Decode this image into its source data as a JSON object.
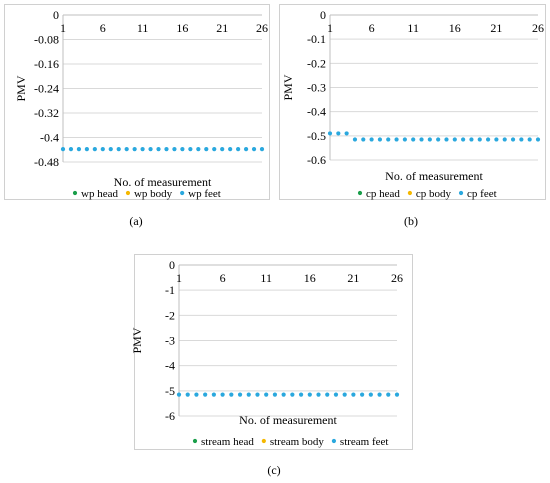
{
  "chart_data": [
    {
      "type": "scatter",
      "caption": "(a)",
      "xlabel": "No. of measurement",
      "ylabel": "PMV",
      "xticks": [
        "1",
        "6",
        "11",
        "16",
        "21",
        "26"
      ],
      "yticks": [
        "0",
        "-0.08",
        "-0.16",
        "-0.24",
        "-0.32",
        "-0.4",
        "-0.48"
      ],
      "ylim": [
        -0.48,
        0
      ],
      "xlim": [
        1,
        26
      ],
      "series": [
        {
          "name": "wp head",
          "color": "#1a9e4a",
          "values": []
        },
        {
          "name": "wp body",
          "color": "#f5b800",
          "values": []
        },
        {
          "name": "wp feet",
          "color": "#2aa8de",
          "values": [
            -0.438,
            -0.438,
            -0.438,
            -0.438,
            -0.438,
            -0.438,
            -0.438,
            -0.438,
            -0.438,
            -0.438,
            -0.438,
            -0.438,
            -0.438,
            -0.438,
            -0.438,
            -0.438,
            -0.438,
            -0.438,
            -0.438,
            -0.438,
            -0.438,
            -0.438,
            -0.438,
            -0.438,
            -0.438,
            -0.438
          ]
        }
      ]
    },
    {
      "type": "scatter",
      "caption": "(b)",
      "xlabel": "No. of measurement",
      "ylabel": "PMV",
      "xticks": [
        "1",
        "6",
        "11",
        "16",
        "21",
        "26"
      ],
      "yticks": [
        "0",
        "-0.1",
        "-0.2",
        "-0.3",
        "-0.4",
        "-0.5",
        "-0.6"
      ],
      "ylim": [
        -0.6,
        0
      ],
      "xlim": [
        1,
        26
      ],
      "series": [
        {
          "name": "cp head",
          "color": "#1a9e4a",
          "values": []
        },
        {
          "name": "cp body",
          "color": "#f5b800",
          "values": []
        },
        {
          "name": "cp feet",
          "color": "#2aa8de",
          "values": [
            -0.49,
            -0.49,
            -0.49,
            -0.515,
            -0.515,
            -0.515,
            -0.515,
            -0.515,
            -0.515,
            -0.515,
            -0.515,
            -0.515,
            -0.515,
            -0.515,
            -0.515,
            -0.515,
            -0.515,
            -0.515,
            -0.515,
            -0.515,
            -0.515,
            -0.515,
            -0.515,
            -0.515,
            -0.515,
            -0.515
          ]
        }
      ]
    },
    {
      "type": "scatter",
      "caption": "(c)",
      "xlabel": "No. of measurement",
      "ylabel": "PMV",
      "xticks": [
        "1",
        "6",
        "11",
        "16",
        "21",
        "26"
      ],
      "yticks": [
        "0",
        "-1",
        "-2",
        "-3",
        "-4",
        "-5",
        "-6"
      ],
      "ylim": [
        -6,
        0
      ],
      "xlim": [
        1,
        26
      ],
      "series": [
        {
          "name": "stream head",
          "color": "#1a9e4a",
          "values": []
        },
        {
          "name": "stream body",
          "color": "#f5b800",
          "values": []
        },
        {
          "name": "stream feet",
          "color": "#2aa8de",
          "values": [
            -5.15,
            -5.15,
            -5.15,
            -5.15,
            -5.15,
            -5.15,
            -5.15,
            -5.15,
            -5.15,
            -5.15,
            -5.15,
            -5.15,
            -5.15,
            -5.15,
            -5.15,
            -5.15,
            -5.15,
            -5.15,
            -5.15,
            -5.15,
            -5.15,
            -5.15,
            -5.15,
            -5.15,
            -5.15,
            -5.15
          ]
        }
      ]
    }
  ]
}
